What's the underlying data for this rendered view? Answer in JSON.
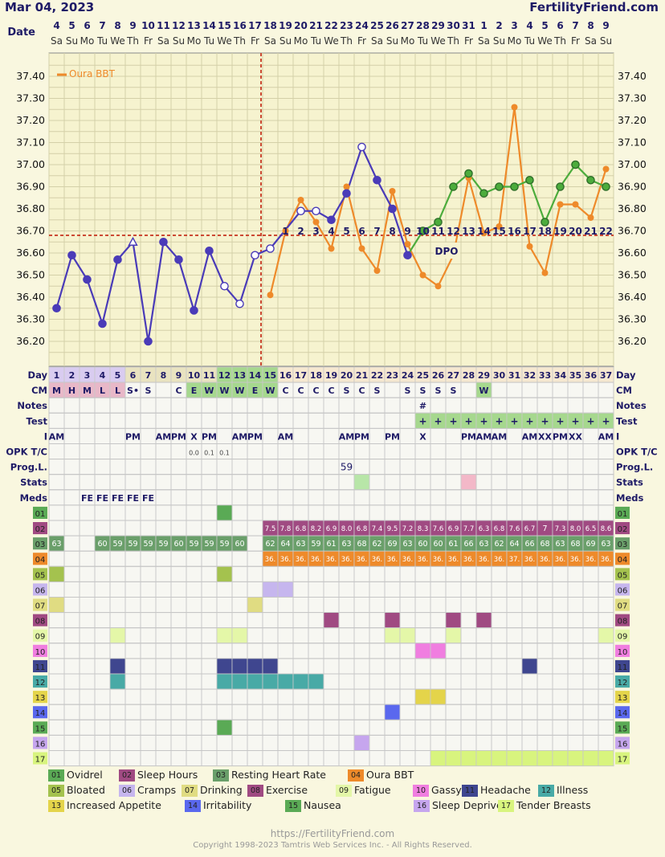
{
  "header": {
    "date": "Mar 04, 2023",
    "site": "FertilityFriend.com"
  },
  "footer": {
    "url": "https://FertilityFriend.com",
    "copyright": "Copyright 1998-2023 Tamtris Web Services Inc. - All Rights Reserved."
  },
  "chart_data": {
    "type": "line",
    "date_row": {
      "label": "Date",
      "days": [
        "4",
        "5",
        "6",
        "7",
        "8",
        "9",
        "10",
        "11",
        "12",
        "13",
        "14",
        "15",
        "16",
        "17",
        "18",
        "19",
        "20",
        "21",
        "22",
        "23",
        "24",
        "25",
        "26",
        "27",
        "28",
        "29",
        "30",
        "31",
        "1",
        "2",
        "3",
        "4",
        "5",
        "6",
        "7",
        "8",
        "9"
      ],
      "weekdays": [
        "Sa",
        "Su",
        "Mo",
        "Tu",
        "We",
        "Th",
        "Fr",
        "Sa",
        "Su",
        "Mo",
        "Tu",
        "We",
        "Th",
        "Fr",
        "Sa",
        "Su",
        "Mo",
        "Tu",
        "We",
        "Th",
        "Fr",
        "Sa",
        "Su",
        "Mo",
        "Tu",
        "We",
        "Th",
        "Fr",
        "Sa",
        "Su",
        "Mo",
        "Tu",
        "We",
        "Th",
        "Fr",
        "Sa",
        "Su"
      ]
    },
    "y_ticks": [
      "37.40",
      "37.30",
      "37.20",
      "37.10",
      "37.00",
      "36.90",
      "36.80",
      "36.70",
      "36.60",
      "36.50",
      "36.40",
      "36.30",
      "36.20"
    ],
    "ylim": [
      36.15,
      37.45
    ],
    "coverline": 36.68,
    "ovulation_day": 15,
    "colors": {
      "bbt": "#4a3bb8",
      "oura": "#ee8a2a",
      "post": "#4cac3c",
      "coverline": "#cc4a33",
      "tick": "#111111"
    },
    "series": [
      {
        "name": "BBT",
        "values": [
          36.35,
          36.59,
          36.48,
          36.28,
          36.57,
          36.65,
          36.2,
          36.65,
          36.57,
          36.34,
          36.61,
          36.45,
          36.37,
          36.59,
          36.62,
          null,
          36.79,
          36.79,
          36.75,
          36.87,
          37.08,
          36.93,
          36.8,
          36.59,
          36.7,
          36.74,
          36.9,
          36.96,
          36.87,
          36.9,
          36.9,
          36.93,
          36.74,
          36.9,
          37.0,
          36.93,
          36.9
        ],
        "open_points": [
          6,
          12,
          13,
          14,
          15,
          17,
          18,
          21
        ],
        "triangle_points": [
          6
        ]
      },
      {
        "name": "Oura BBT",
        "values": [
          null,
          null,
          null,
          null,
          null,
          null,
          null,
          null,
          null,
          null,
          null,
          null,
          null,
          null,
          36.41,
          36.7,
          36.84,
          36.74,
          36.62,
          36.9,
          36.62,
          36.52,
          36.88,
          36.64,
          36.5,
          36.45,
          36.59,
          36.94,
          36.69,
          36.72,
          37.26,
          36.63,
          36.51,
          36.82,
          36.82,
          36.76,
          36.98
        ]
      }
    ],
    "dpo_labels": [
      "1",
      "2",
      "3",
      "4",
      "5",
      "6",
      "7",
      "8",
      "9",
      "10",
      "11",
      "12",
      "13",
      "14",
      "15",
      "16",
      "17",
      "18",
      "19",
      "20",
      "21",
      "22"
    ],
    "dpo_marker": "DPO",
    "rows": [
      {
        "label": "Day",
        "cells": [
          "1",
          "2",
          "3",
          "4",
          "5",
          "6",
          "7",
          "8",
          "9",
          "10",
          "11",
          "12",
          "13",
          "14",
          "15",
          "16",
          "17",
          "18",
          "19",
          "20",
          "21",
          "22",
          "23",
          "24",
          "25",
          "26",
          "27",
          "28",
          "29",
          "30",
          "31",
          "32",
          "33",
          "34",
          "35",
          "36",
          "37"
        ]
      },
      {
        "label": "CM",
        "cells": [
          "M",
          "H",
          "M",
          "L",
          "L",
          "S•",
          "S",
          "",
          "C",
          "E",
          "W",
          "W",
          "W",
          "E",
          "W",
          "C",
          "C",
          "C",
          "C",
          "S",
          "C",
          "S",
          "",
          "S",
          "S",
          "S",
          "S",
          "",
          "W",
          "",
          "",
          "",
          "",
          "",
          "",
          "",
          ""
        ]
      },
      {
        "label": "Notes",
        "cells": [
          "",
          "",
          "",
          "",
          "",
          "",
          "",
          "",
          "",
          "",
          "",
          "",
          "",
          "",
          "",
          "",
          "",
          "",
          "",
          "",
          "",
          "",
          "",
          "",
          "#",
          "",
          "",
          "",
          "",
          "",
          "",
          "",
          "",
          "",
          "",
          "",
          ""
        ]
      },
      {
        "label": "Test",
        "cells": [
          "",
          "",
          "",
          "",
          "",
          "",
          "",
          "",
          "",
          "",
          "",
          "",
          "",
          "",
          "",
          "",
          "",
          "",
          "",
          "",
          "",
          "",
          "",
          "",
          "+",
          "+",
          "+",
          "+",
          "+",
          "+",
          "+",
          "+",
          "+",
          "+",
          "+",
          "+",
          "+"
        ]
      },
      {
        "label": "I",
        "label_right": "I",
        "cells": [
          "AM",
          "",
          "",
          "",
          "",
          "PM",
          "",
          "AM",
          "PM",
          "X",
          "PM",
          "",
          "AM",
          "PM",
          "",
          "AM",
          "",
          "",
          "",
          "AM",
          "PM",
          "",
          "PM",
          "",
          "X",
          "",
          "",
          "PM",
          "AM",
          "AM",
          "",
          "AM",
          "XX",
          "PM",
          "XX",
          "",
          "AM"
        ]
      },
      {
        "label": "OPK T/C",
        "label_right": "OPK T/C",
        "cells": [
          "",
          "",
          "",
          "",
          "",
          "",
          "",
          "",
          "",
          "0.0",
          "0.1",
          "0.1",
          "",
          "",
          "",
          "",
          "",
          "",
          "",
          "",
          "",
          "",
          "",
          "",
          "",
          "",
          "",
          "",
          "",
          "",
          "",
          "",
          "",
          "",
          "",
          "",
          ""
        ]
      },
      {
        "label": "Prog.L.",
        "cells": [
          "",
          "",
          "",
          "",
          "",
          "",
          "",
          "",
          "",
          "",
          "",
          "",
          "",
          "",
          "",
          "",
          "",
          "",
          "",
          "59",
          "",
          "",
          "",
          "",
          "",
          "",
          "",
          "",
          "",
          "",
          "",
          "",
          "",
          "",
          "",
          "",
          ""
        ]
      },
      {
        "label": "Stats",
        "cells": [
          "",
          "",
          "",
          "",
          "",
          "",
          "",
          "",
          "",
          "",
          "",
          "",
          "",
          "",
          "",
          "",
          "",
          "",
          "",
          "",
          "",
          "",
          "",
          "",
          "",
          "",
          "",
          "",
          "",
          "",
          "",
          "",
          "",
          "",
          "",
          "",
          ""
        ]
      },
      {
        "label": "Meds",
        "cells": [
          "",
          "",
          "FE",
          "FE",
          "FE",
          "FE",
          "FE",
          "",
          "",
          "",
          "",
          "",
          "",
          "",
          "",
          "",
          "",
          "",
          "",
          "",
          "",
          "",
          "",
          "",
          "",
          "",
          "",
          "",
          "",
          "",
          "",
          "",
          "",
          "",
          "",
          "",
          ""
        ]
      }
    ],
    "tracker_rows": [
      {
        "code": "02",
        "cells": [
          "",
          "",
          "",
          "",
          "",
          "",
          "",
          "",
          "",
          "",
          "",
          "",
          "",
          "",
          "7.5",
          "7.8",
          "6.8",
          "8.2",
          "6.9",
          "8.0",
          "6.8",
          "7.4",
          "9.5",
          "7.2",
          "8.3",
          "7.6",
          "6.9",
          "7.7",
          "6.3",
          "6.8",
          "7.6",
          "6.7",
          "7",
          "7.3",
          "8.0",
          "6.5",
          "8.6"
        ]
      },
      {
        "code": "03",
        "cells": [
          "63",
          "",
          "",
          "60",
          "59",
          "59",
          "59",
          "59",
          "60",
          "59",
          "59",
          "59",
          "60",
          "",
          "62",
          "64",
          "63",
          "59",
          "61",
          "63",
          "68",
          "62",
          "69",
          "63",
          "60",
          "60",
          "61",
          "66",
          "63",
          "62",
          "64",
          "66",
          "68",
          "63",
          "68",
          "69",
          "63"
        ]
      },
      {
        "code": "04",
        "cells": [
          "",
          "",
          "",
          "",
          "",
          "",
          "",
          "",
          "",
          "",
          "",
          "",
          "",
          "",
          "36.",
          "36.",
          "36.",
          "36.",
          "36.",
          "36.",
          "36.",
          "36.",
          "36.",
          "36.",
          "36.",
          "36.",
          "36.",
          "36.",
          "36.",
          "36.",
          "37.",
          "36.",
          "36.",
          "36.",
          "36.",
          "36.",
          "36."
        ]
      }
    ],
    "legend": [
      {
        "code": "01",
        "name": "Ovidrel",
        "color": "#5aaa55"
      },
      {
        "code": "02",
        "name": "Sleep Hours",
        "color": "#a04a82"
      },
      {
        "code": "03",
        "name": "Resting Heart Rate",
        "color": "#6a9f6a"
      },
      {
        "code": "04",
        "name": "Oura BBT",
        "color": "#ee8a2a"
      },
      {
        "code": "05",
        "name": "Bloated",
        "color": "#a4c24e"
      },
      {
        "code": "06",
        "name": "Cramps",
        "color": "#c6b6ee"
      },
      {
        "code": "07",
        "name": "Drinking",
        "color": "#e0dc82"
      },
      {
        "code": "08",
        "name": "Exercise",
        "color": "#a04a82"
      },
      {
        "code": "09",
        "name": "Fatigue",
        "color": "#e4f7a8"
      },
      {
        "code": "10",
        "name": "Gassy",
        "color": "#f07ee0"
      },
      {
        "code": "11",
        "name": "Headache",
        "color": "#3f468f"
      },
      {
        "code": "12",
        "name": "Illness",
        "color": "#48aaa6"
      },
      {
        "code": "13",
        "name": "Increased Appetite",
        "color": "#e4d44a"
      },
      {
        "code": "14",
        "name": "Irritability",
        "color": "#5a68ee"
      },
      {
        "code": "15",
        "name": "Nausea",
        "color": "#5aaa55"
      },
      {
        "code": "16",
        "name": "Sleep Deprived",
        "color": "#c6a6ee"
      },
      {
        "code": "17",
        "name": "Tender Breasts",
        "color": "#d8f47e"
      }
    ]
  }
}
